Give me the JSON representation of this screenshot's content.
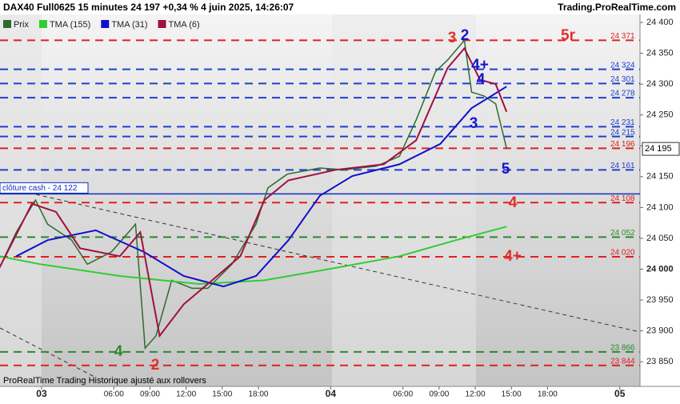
{
  "chart_data": {
    "type": "line",
    "title": "DAX40 Full0625 15 minutes 24 197 +0,34 % 4 juin 2025, 14:26:07",
    "source": "Trading.ProRealTime.com",
    "footer": "ProRealTime Trading  Historique ajusté aux rollovers",
    "xlim": [
      -3.45,
      49.68
    ],
    "ylim": [
      23810,
      24413
    ],
    "xticks": [
      {
        "value": 0,
        "label": "03"
      },
      {
        "value": 6,
        "label": "06:00"
      },
      {
        "value": 9,
        "label": "09:00"
      },
      {
        "value": 12,
        "label": "12:00"
      },
      {
        "value": 15,
        "label": "15:00"
      },
      {
        "value": 18,
        "label": "18:00"
      },
      {
        "value": 24,
        "label": "04"
      },
      {
        "value": 30,
        "label": "06:00"
      },
      {
        "value": 33,
        "label": "09:00"
      },
      {
        "value": 36,
        "label": "12:00"
      },
      {
        "value": 39,
        "label": "15:00"
      },
      {
        "value": 42,
        "label": "18:00"
      },
      {
        "value": 48,
        "label": "05"
      }
    ],
    "yticks": [
      {
        "value": 23850,
        "label": "23 850"
      },
      {
        "value": 23900,
        "label": "23 900"
      },
      {
        "value": 23950,
        "label": "23 950"
      },
      {
        "value": 24000,
        "label": "24 000"
      },
      {
        "value": 24050,
        "label": "24 050"
      },
      {
        "value": 24100,
        "label": "24 100"
      },
      {
        "value": 24150,
        "label": "24 150"
      },
      {
        "value": 24200,
        "label": "24 200"
      },
      {
        "value": 24250,
        "label": "24 250"
      },
      {
        "value": 24300,
        "label": "24 300"
      },
      {
        "value": 24350,
        "label": "24 350"
      },
      {
        "value": 24400,
        "label": "24 400"
      }
    ],
    "series": [
      {
        "name": "Prix",
        "color": "#2e6b2e",
        "x": [
          -3.5,
          -2.1,
          -0.5,
          0.5,
          2.5,
          3.8,
          5.8,
          7.8,
          8.6,
          9.5,
          10.8,
          12.5,
          13.8,
          15.8,
          17.8,
          18.8,
          20.4,
          23.1,
          25.1,
          27.8,
          29.7,
          31.1,
          32.7,
          33.7,
          35.1,
          35.7,
          36.7,
          37.7,
          38.6
        ],
        "values": [
          24002,
          24060,
          24112,
          24073,
          24047,
          24008,
          24028,
          24073,
          23872,
          23892,
          23982,
          23969,
          23969,
          24008,
          24073,
          24132,
          24154,
          24164,
          24161,
          24167,
          24183,
          24242,
          24320,
          24339,
          24371,
          24287,
          24281,
          24268,
          24196
        ]
      },
      {
        "name": "TMA (155)",
        "color": "#33cc33",
        "x": [
          -3.5,
          -0.1,
          6.5,
          13.1,
          18.5,
          24.4,
          29.7,
          34.4,
          38.6
        ],
        "values": [
          24021,
          24008,
          23989,
          23976,
          23982,
          24002,
          24021,
          24047,
          24069
        ]
      },
      {
        "name": "TMA (31)",
        "color": "#1010cc",
        "x": [
          -2.1,
          0.5,
          4.5,
          8.5,
          11.8,
          15.1,
          17.8,
          20.5,
          23.1,
          25.8,
          29.7,
          33.1,
          35.7,
          38.6
        ],
        "values": [
          24021,
          24047,
          24063,
          24028,
          23989,
          23972,
          23989,
          24047,
          24119,
          24151,
          24170,
          24203,
          24261,
          24296
        ]
      },
      {
        "name": "TMA (6)",
        "color": "#a01040",
        "x": [
          -3.5,
          -0.8,
          1.2,
          3.2,
          6.5,
          8.2,
          9.8,
          11.8,
          13.8,
          16.5,
          18.5,
          20.5,
          24.4,
          28.4,
          31.1,
          33.7,
          35.1,
          36.4,
          37.7,
          38.6
        ],
        "values": [
          24002,
          24106,
          24093,
          24034,
          24021,
          24060,
          23892,
          23943,
          23976,
          24021,
          24112,
          24144,
          24161,
          24170,
          24209,
          24326,
          24358,
          24307,
          24300,
          24255
        ]
      }
    ],
    "levels": [
      {
        "value": 24371,
        "label": "24 371",
        "color": "#e02020"
      },
      {
        "value": 24324,
        "label": "24 324",
        "color": "#1f3fd0"
      },
      {
        "value": 24301,
        "label": "24 301",
        "color": "#1f3fd0"
      },
      {
        "value": 24278,
        "label": "24 278",
        "color": "#1f3fd0"
      },
      {
        "value": 24231,
        "label": "24 231",
        "color": "#1f3fd0"
      },
      {
        "value": 24215,
        "label": "24 215",
        "color": "#1f3fd0"
      },
      {
        "value": 24196,
        "label": "24 196",
        "color": "#e02020"
      },
      {
        "value": 24161,
        "label": "24 161",
        "color": "#1f3fd0"
      },
      {
        "value": 24108,
        "label": "24 108",
        "color": "#e02020"
      },
      {
        "value": 24052,
        "label": "24 052",
        "color": "#2a8a2a"
      },
      {
        "value": 24020,
        "label": "24 020",
        "color": "#e02020"
      },
      {
        "value": 23866,
        "label": "23 866",
        "color": "#2a8a2a"
      },
      {
        "value": 23844,
        "label": "23 844",
        "color": "#e02020"
      }
    ],
    "close_line": {
      "value": 24122,
      "label": "clôture cash -  24 122",
      "color": "#1030c0"
    },
    "last_price": {
      "value": 24195,
      "label": "24 195"
    },
    "annotations": [
      {
        "text": "3",
        "color": "#e03030"
      },
      {
        "text": "2",
        "color": "#1515d0"
      },
      {
        "text": "5r",
        "color": "#e03030"
      },
      {
        "text": "4+",
        "color": "#1515d0"
      },
      {
        "text": "4",
        "color": "#1515d0"
      },
      {
        "text": "3",
        "color": "#1515d0"
      },
      {
        "text": "5",
        "color": "#1515d0"
      },
      {
        "text": "4",
        "color": "#e03030"
      },
      {
        "text": "4+",
        "color": "#e03030"
      },
      {
        "text": "4",
        "color": "#2a8a2a"
      },
      {
        "text": "2",
        "color": "#e03030"
      }
    ]
  }
}
